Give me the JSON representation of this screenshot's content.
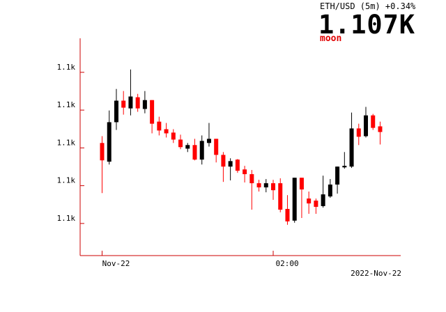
{
  "chart_data": {
    "type": "candlestick",
    "title": "ETH/USD (5m) +0.34%",
    "subtitle": "1.107K",
    "annotation": "moon",
    "date_label": "2022-Nov-22",
    "categories": [
      "Nov-22",
      null,
      null,
      null,
      null,
      null,
      null,
      null,
      null,
      null,
      null,
      null,
      null,
      null,
      null,
      null,
      null,
      null,
      null,
      null,
      null,
      null,
      null,
      null,
      "02:00",
      null,
      null,
      null,
      null,
      null,
      null,
      null,
      null,
      null,
      null,
      null,
      null,
      null,
      null,
      null
    ],
    "open": [
      1106.26,
      1105.27,
      1107.36,
      1108.5,
      1108.09,
      1108.68,
      1108.06,
      1108.53,
      1107.39,
      1106.99,
      1106.81,
      1106.44,
      1105.96,
      1106.15,
      1105.38,
      1106.26,
      1106.48,
      1105.63,
      1105.01,
      1105.38,
      1104.86,
      1104.61,
      1104.13,
      1103.91,
      1104.13,
      1104.13,
      1102.77,
      1102.15,
      1104.42,
      1103.32,
      1103.21,
      1102.92,
      1103.43,
      1104.06,
      1104.97,
      1105.01,
      1107.03,
      1106.62,
      1107.72,
      1107.14
    ],
    "high": [
      1106.62,
      1107.98,
      1109.12,
      1109.01,
      1110.15,
      1108.86,
      1109.01,
      1108.53,
      1107.65,
      1107.32,
      1106.99,
      1106.7,
      1106.26,
      1106.48,
      1106.66,
      1107.32,
      1106.48,
      1105.78,
      1105.45,
      1105.41,
      1105.05,
      1104.83,
      1104.31,
      1104.35,
      1104.31,
      1104.39,
      1103.5,
      1104.42,
      1104.42,
      1103.69,
      1103.32,
      1104.53,
      1104.35,
      1105.01,
      1105.78,
      1107.87,
      1107.28,
      1108.17,
      1107.8,
      1107.39
    ],
    "low": [
      1103.61,
      1105.12,
      1106.95,
      1107.76,
      1107.72,
      1107.91,
      1107.83,
      1106.77,
      1106.66,
      1106.55,
      1106.26,
      1105.93,
      1105.78,
      1105.34,
      1105.12,
      1106.07,
      1105.23,
      1104.2,
      1104.28,
      1104.68,
      1104.17,
      1102.73,
      1103.69,
      1103.65,
      1103.25,
      1102.59,
      1101.93,
      1102.04,
      1102.29,
      1102.51,
      1102.51,
      1102.84,
      1103.36,
      1103.58,
      1104.9,
      1104.94,
      1106.15,
      1106.55,
      1106.95,
      1106.18
    ],
    "close": [
      1105.34,
      1107.36,
      1108.5,
      1108.13,
      1108.72,
      1108.09,
      1108.53,
      1107.28,
      1106.92,
      1106.77,
      1106.44,
      1106.04,
      1106.15,
      1105.38,
      1106.37,
      1106.48,
      1105.63,
      1105.01,
      1105.3,
      1104.79,
      1104.61,
      1104.13,
      1103.91,
      1104.13,
      1103.76,
      1102.73,
      1102.11,
      1104.42,
      1103.8,
      1103.06,
      1102.88,
      1103.54,
      1104.06,
      1105.01,
      1105.05,
      1107.03,
      1106.59,
      1107.72,
      1107.06,
      1106.84
    ],
    "up_color": "#000000",
    "down_color": "#ff0000",
    "axis_color": "#cc0000",
    "ylim": [
      1100.3,
      1111.8
    ],
    "yticks": [
      {
        "value": 1102,
        "label": "1.1k"
      },
      {
        "value": 1104,
        "label": "1.1k"
      },
      {
        "value": 1106,
        "label": "1.1k"
      },
      {
        "value": 1108,
        "label": "1.1k"
      },
      {
        "value": 1110,
        "label": "1.1k"
      }
    ]
  }
}
